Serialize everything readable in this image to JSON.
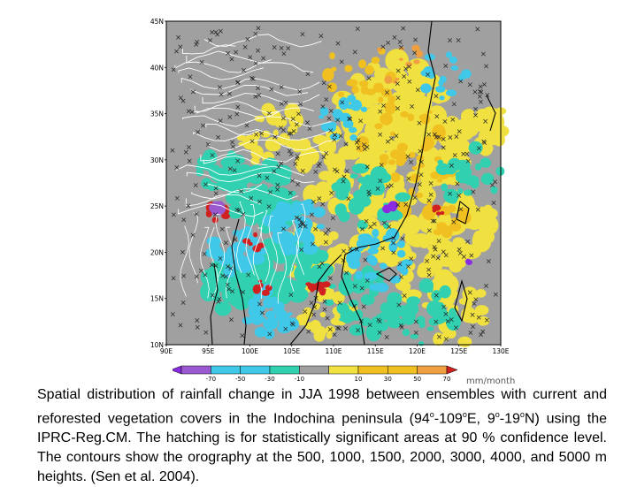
{
  "map": {
    "lat_labels": [
      "45N",
      "40N",
      "35N",
      "30N",
      "25N",
      "20N",
      "15N",
      "10N"
    ],
    "lon_labels": [
      "90E",
      "95E",
      "100E",
      "105E",
      "110E",
      "115E",
      "120E",
      "125E",
      "130E"
    ],
    "colors": {
      "background": "#a0a0a0",
      "dark_purple": "#8a2be2",
      "purple": "#9b59d0",
      "cyan": "#40c8e8",
      "teal": "#30d0b0",
      "yellow": "#f0e040",
      "gold": "#f0c020",
      "orange": "#f0a040",
      "red": "#d02020",
      "contour": "#ffffff",
      "coast": "#000000"
    }
  },
  "colorbar": {
    "labels": [
      "-70",
      "-50",
      "-30",
      "-10",
      "10",
      "30",
      "50",
      "70"
    ],
    "units": "mm/month"
  },
  "caption": {
    "p1": "Spatial distribution of rainfall change in JJA 1998 between ensembles with current and reforested vegetation covers in the Indochina peninsula (94",
    "deg1": "o",
    "p2": "-109",
    "deg2": "o",
    "p3": "E, 9",
    "deg3": "o",
    "p4": "-19",
    "deg4": "o",
    "p5": "N) using the IPRC-Reg.CM. The hatching is for statistically significant areas at 90 % confidence level. The contours show the orography at the 500, 1000, 1500, 2000, 3000, 4000, and 5000 m heights. (Sen et al. 2004)."
  }
}
